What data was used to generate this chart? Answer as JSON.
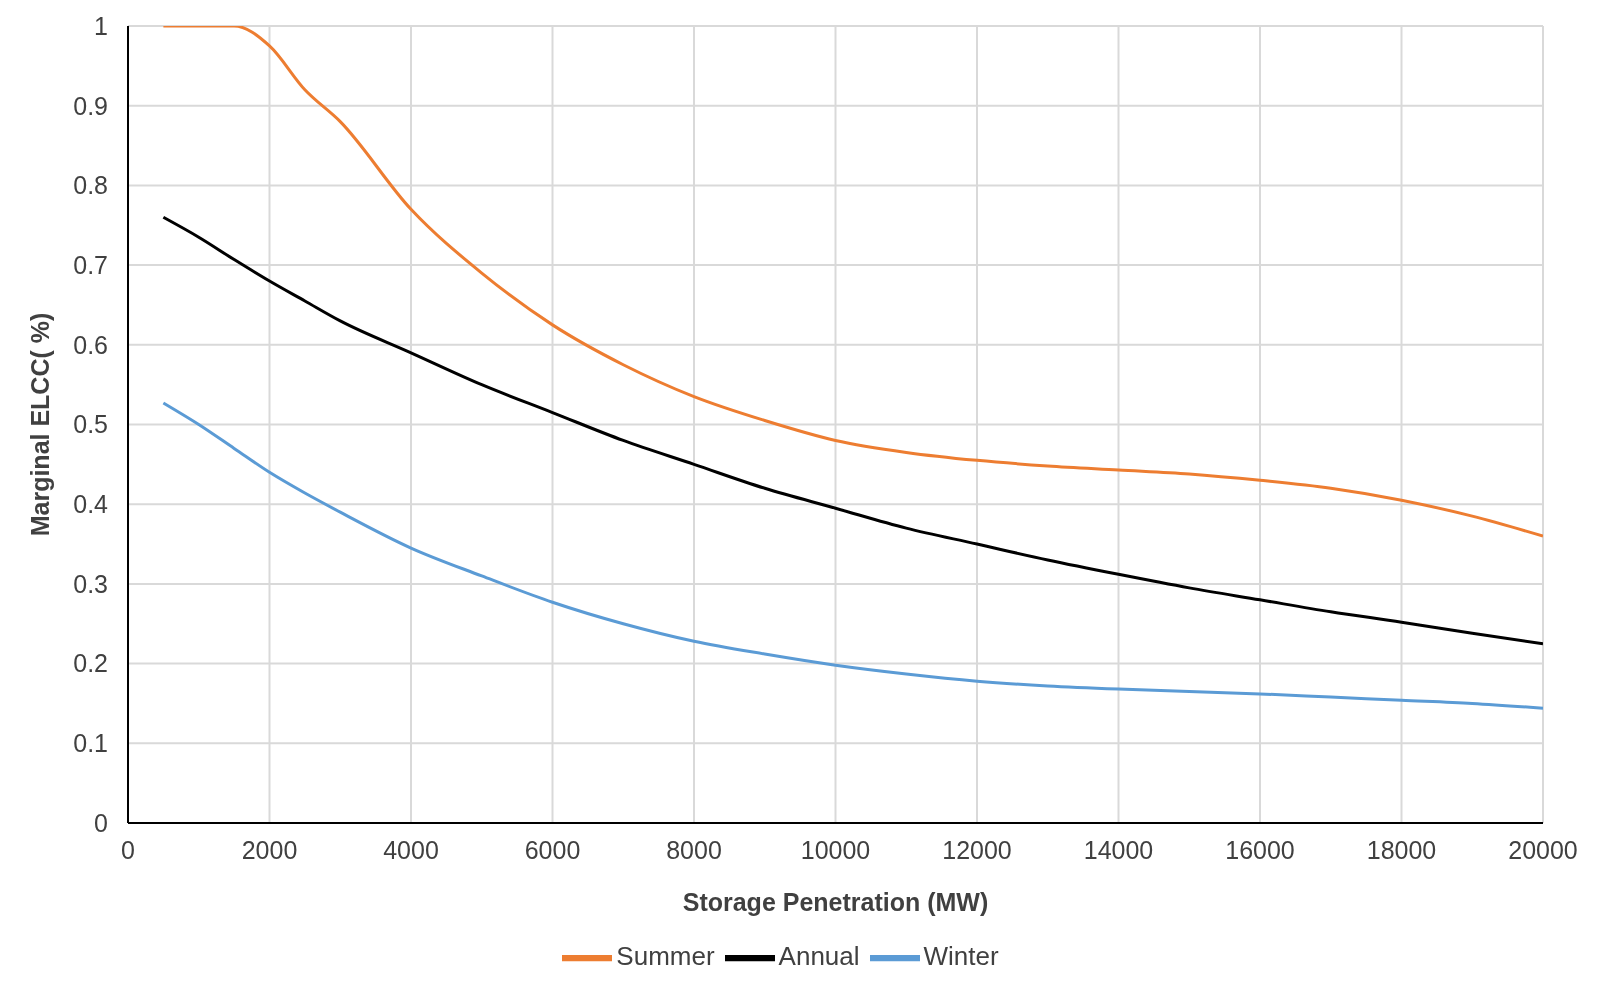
{
  "chart_data": {
    "type": "line",
    "xlabel": "Storage Penetration (MW)",
    "ylabel": "Marginal ELCC( %)",
    "x": [
      500,
      1000,
      1500,
      2000,
      2500,
      3000,
      4000,
      5000,
      6000,
      7000,
      8000,
      9000,
      10000,
      11000,
      12000,
      13000,
      14000,
      15000,
      16000,
      17000,
      18000,
      19000,
      20000
    ],
    "series": [
      {
        "name": "Summer",
        "color": "#ed7d31",
        "values": [
          1.0,
          1.0,
          1.0,
          0.975,
          0.92,
          0.88,
          0.77,
          0.69,
          0.625,
          0.575,
          0.535,
          0.505,
          0.48,
          0.465,
          0.455,
          0.448,
          0.443,
          0.438,
          0.43,
          0.42,
          0.405,
          0.385,
          0.36
        ]
      },
      {
        "name": "Annual",
        "color": "#000000",
        "values": [
          0.76,
          0.735,
          0.707,
          0.68,
          0.655,
          0.63,
          0.59,
          0.55,
          0.515,
          0.48,
          0.45,
          0.42,
          0.395,
          0.37,
          0.35,
          0.33,
          0.312,
          0.295,
          0.28,
          0.265,
          0.252,
          0.238,
          0.225
        ]
      },
      {
        "name": "Winter",
        "color": "#5b9bd5",
        "values": [
          0.527,
          0.5,
          0.47,
          0.44,
          0.414,
          0.39,
          0.345,
          0.31,
          0.277,
          0.25,
          0.228,
          0.212,
          0.198,
          0.187,
          0.178,
          0.172,
          0.168,
          0.165,
          0.162,
          0.158,
          0.154,
          0.15,
          0.144
        ]
      }
    ],
    "xlim": [
      0,
      20000
    ],
    "xticks": [
      0,
      2000,
      4000,
      6000,
      8000,
      10000,
      12000,
      14000,
      16000,
      18000,
      20000
    ],
    "ylim": [
      0,
      1
    ],
    "yticks": [
      0,
      0.1,
      0.2,
      0.3,
      0.4,
      0.5,
      0.6,
      0.7,
      0.8,
      0.9,
      1
    ],
    "grid": true,
    "legend": "bottom",
    "marker": "none",
    "line_style": "solid"
  }
}
